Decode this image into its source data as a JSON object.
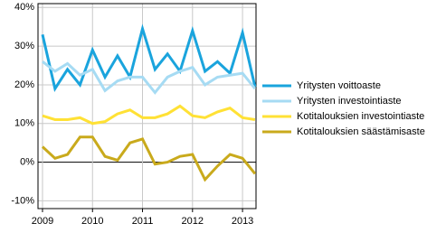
{
  "chart_data": {
    "type": "line",
    "x": [
      2009,
      2009.25,
      2009.5,
      2009.75,
      2010,
      2010.25,
      2010.5,
      2010.75,
      2011,
      2011.25,
      2011.5,
      2011.75,
      2012,
      2012.25,
      2012.5,
      2012.75,
      2013,
      2013.25
    ],
    "series": [
      {
        "name": "Yritysten voittoaste",
        "color": "#1aa4dd",
        "values": [
          33,
          19,
          24,
          20,
          29,
          22,
          27.5,
          22,
          34.5,
          24,
          28,
          23.5,
          34,
          23.5,
          26,
          23,
          33.5,
          19.5
        ]
      },
      {
        "name": "Yritysten investointiaste",
        "color": "#a6dbf3",
        "values": [
          26,
          23.5,
          25.5,
          22.5,
          24,
          18.5,
          21,
          22,
          22,
          18,
          22,
          23.5,
          24.5,
          20,
          22,
          22.5,
          23,
          19
        ]
      },
      {
        "name": "Kotitalouksien investointiaste",
        "color": "#ffe135",
        "values": [
          12,
          11,
          11,
          11.5,
          10,
          10.5,
          12.5,
          13.5,
          11.5,
          11.5,
          12.5,
          14.5,
          12,
          11.5,
          13,
          14,
          11.5,
          11
        ]
      },
      {
        "name": "Kotitalouksien säästämisaste",
        "color": "#c9aa1c",
        "values": [
          4,
          1,
          2,
          6.5,
          6.5,
          1.5,
          0.5,
          5,
          6,
          -0.5,
          0,
          1.5,
          2,
          -4.5,
          -1,
          2,
          1,
          -3
        ]
      }
    ],
    "xlim": [
      2008.91,
      2013.27
    ],
    "xticks": [
      2009,
      2010,
      2011,
      2012,
      2013
    ],
    "ylim": [
      -12,
      41
    ],
    "yticks": [
      {
        "value": -10,
        "label": "-10%"
      },
      {
        "value": 0,
        "label": "0%"
      },
      {
        "value": 10,
        "label": "10%"
      },
      {
        "value": 20,
        "label": "20%"
      },
      {
        "value": 30,
        "label": "30%"
      },
      {
        "value": 40,
        "label": "40%"
      }
    ],
    "grid": true,
    "legend": "right"
  }
}
